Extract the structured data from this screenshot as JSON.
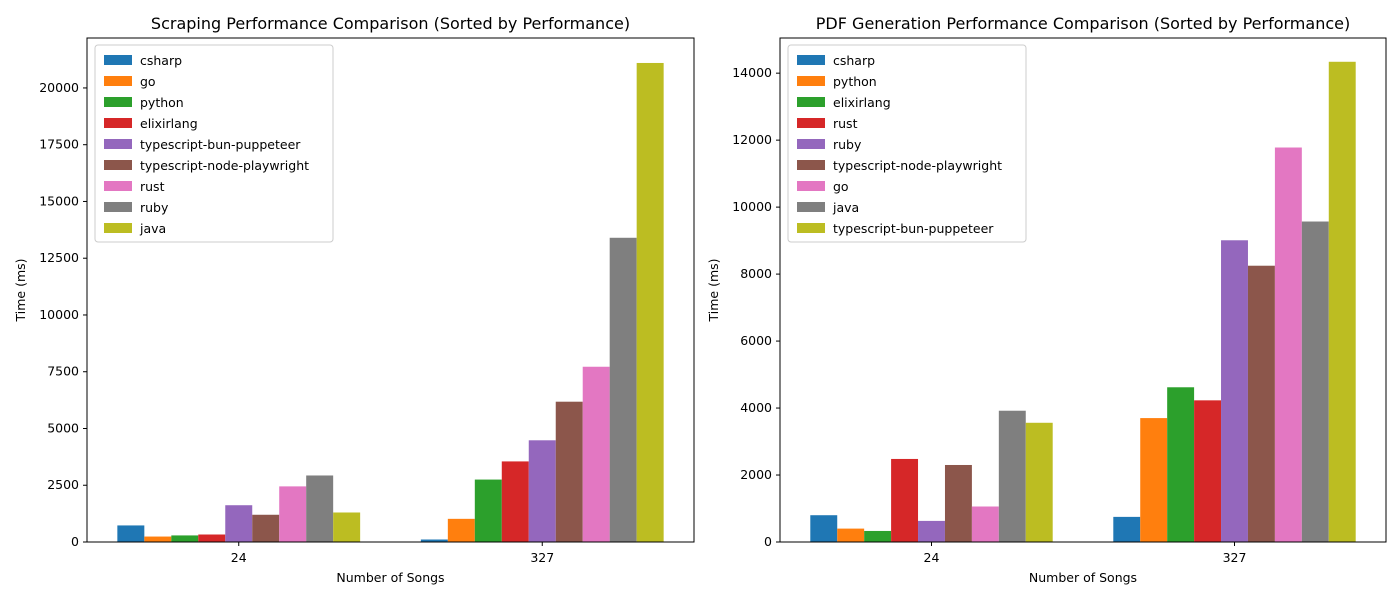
{
  "chart_data": [
    {
      "type": "bar",
      "title": "Scraping Performance Comparison (Sorted by Performance)",
      "xlabel": "Number of Songs",
      "ylabel": "Time (ms)",
      "categories": [
        "24",
        "327"
      ],
      "ylim": [
        0,
        22200
      ],
      "yticks": [
        0,
        2500,
        5000,
        7500,
        10000,
        12500,
        15000,
        17500,
        20000
      ],
      "ytick_labels": [
        "0",
        "2500",
        "5000",
        "7500",
        "10000",
        "12500",
        "15000",
        "17500",
        "20000"
      ],
      "grid": false,
      "legend_position": "top-left",
      "series": [
        {
          "name": "csharp",
          "color": "#1f77b4",
          "values": [
            730,
            110
          ]
        },
        {
          "name": "go",
          "color": "#ff7f0e",
          "values": [
            240,
            1020
          ]
        },
        {
          "name": "python",
          "color": "#2ca02c",
          "values": [
            290,
            2750
          ]
        },
        {
          "name": "elixirlang",
          "color": "#d62728",
          "values": [
            330,
            3550
          ]
        },
        {
          "name": "typescript-bun-puppeteer",
          "color": "#9467bd",
          "values": [
            1620,
            4480
          ]
        },
        {
          "name": "typescript-node-playwright",
          "color": "#8c564b",
          "values": [
            1200,
            6180
          ]
        },
        {
          "name": "rust",
          "color": "#e377c2",
          "values": [
            2450,
            7720
          ]
        },
        {
          "name": "ruby",
          "color": "#7f7f7f",
          "values": [
            2930,
            13400
          ]
        },
        {
          "name": "java",
          "color": "#bcbd22",
          "values": [
            1300,
            21100
          ]
        }
      ]
    },
    {
      "type": "bar",
      "title": "PDF Generation Performance Comparison (Sorted by Performance)",
      "xlabel": "Number of Songs",
      "ylabel": "Time (ms)",
      "categories": [
        "24",
        "327"
      ],
      "ylim": [
        0,
        15050
      ],
      "yticks": [
        0,
        2000,
        4000,
        6000,
        8000,
        10000,
        12000,
        14000
      ],
      "ytick_labels": [
        "0",
        "2000",
        "4000",
        "6000",
        "8000",
        "10000",
        "12000",
        "14000"
      ],
      "grid": false,
      "legend_position": "top-left",
      "series": [
        {
          "name": "csharp",
          "color": "#1f77b4",
          "values": [
            800,
            750
          ]
        },
        {
          "name": "python",
          "color": "#ff7f0e",
          "values": [
            400,
            3700
          ]
        },
        {
          "name": "elixirlang",
          "color": "#2ca02c",
          "values": [
            330,
            4620
          ]
        },
        {
          "name": "rust",
          "color": "#d62728",
          "values": [
            2480,
            4230
          ]
        },
        {
          "name": "ruby",
          "color": "#9467bd",
          "values": [
            630,
            9010
          ]
        },
        {
          "name": "typescript-node-playwright",
          "color": "#8c564b",
          "values": [
            2300,
            8250
          ]
        },
        {
          "name": "go",
          "color": "#e377c2",
          "values": [
            1060,
            11780
          ]
        },
        {
          "name": "java",
          "color": "#7f7f7f",
          "values": [
            3920,
            9570
          ]
        },
        {
          "name": "typescript-bun-puppeteer",
          "color": "#bcbd22",
          "values": [
            3560,
            14340
          ]
        }
      ]
    }
  ]
}
